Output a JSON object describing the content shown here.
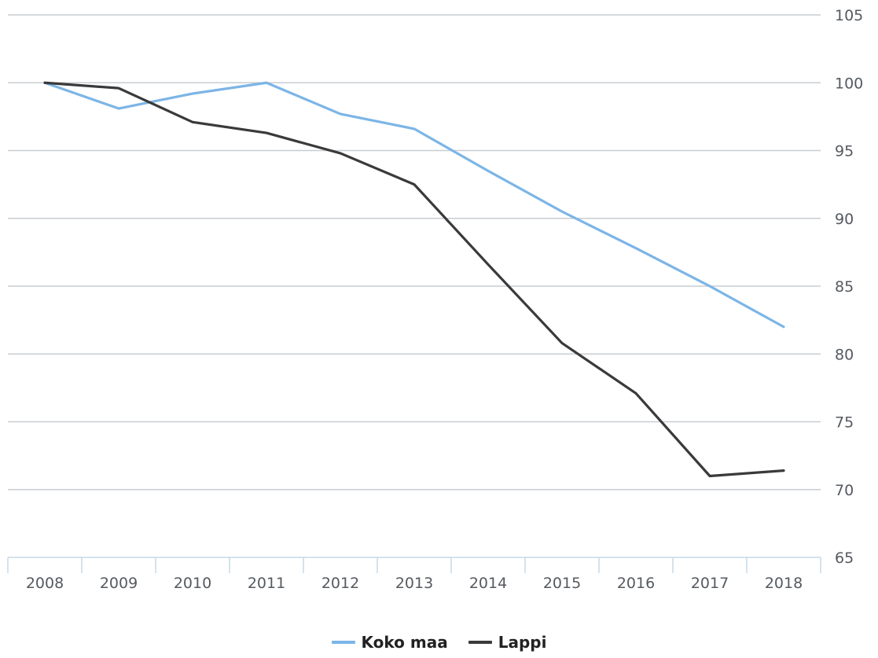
{
  "chart_data": {
    "type": "line",
    "title": "",
    "xlabel": "",
    "ylabel": "",
    "categories": [
      "2008",
      "2009",
      "2010",
      "2011",
      "2012",
      "2013",
      "2014",
      "2015",
      "2016",
      "2017",
      "2018"
    ],
    "ylim": [
      65,
      105
    ],
    "y_ticks": [
      65,
      70,
      75,
      80,
      85,
      90,
      95,
      100,
      105
    ],
    "y_axis_side": "right",
    "grid": true,
    "legend_position": "bottom-center",
    "series": [
      {
        "name": "Koko maa",
        "color": "#7cb5e6",
        "values": [
          100,
          98.1,
          99.2,
          100,
          97.7,
          96.6,
          93.5,
          90.5,
          87.8,
          85.0,
          82.0
        ]
      },
      {
        "name": "Lappi",
        "color": "#3a3a3a",
        "values": [
          100,
          99.6,
          97.1,
          96.3,
          94.8,
          92.5,
          86.6,
          80.8,
          77.1,
          71.0,
          71.4
        ]
      }
    ]
  }
}
